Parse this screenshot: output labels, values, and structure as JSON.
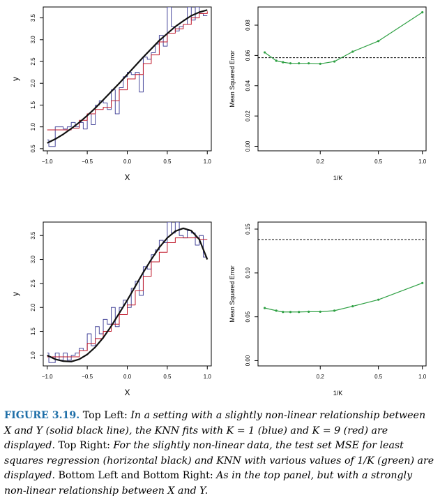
{
  "figure": {
    "label": "FIGURE 3.19.",
    "caption_parts": [
      {
        "text": " Top Left: ",
        "style": "up"
      },
      {
        "text": "In a setting with a slightly non-linear relationship between X and Y (solid black line), the KNN fits with K = 1 (blue) and K = 9 (red) are displayed.",
        "style": "it"
      },
      {
        "text": " Top Right: ",
        "style": "up"
      },
      {
        "text": "For the slightly non-linear data, the test set MSE for least squares regression (horizontal black) and KNN with various values of 1/K (green) are displayed.",
        "style": "it"
      },
      {
        "text": " Bottom Left and Bottom Right: ",
        "style": "up"
      },
      {
        "text": "As in the top panel, but with a strongly non-linear relationship between X and Y.",
        "style": "it"
      }
    ]
  },
  "colors": {
    "knn1": "#4a4a9c",
    "knn9": "#c0182a",
    "truth": "#111111",
    "mse": "#2ea043",
    "ls": "#000000",
    "caption_label": "#1f6fa8"
  },
  "chart_data": [
    {
      "id": "top-left",
      "type": "line",
      "xlabel": "X",
      "ylabel": "y",
      "xlim": [
        -1.05,
        1.05
      ],
      "ylim": [
        0.45,
        3.75
      ],
      "xticks": [
        -1.0,
        -0.5,
        0.0,
        0.5,
        1.0
      ],
      "xtick_labels": [
        "−1.0",
        "−0.5",
        "0.0",
        "0.5",
        "1.0"
      ],
      "yticks": [
        0.5,
        1.0,
        1.5,
        2.0,
        2.5,
        3.0,
        3.5
      ],
      "ytick_labels": [
        "0.5",
        "1.0",
        "1.5",
        "2.0",
        "2.5",
        "3.0",
        "3.5"
      ],
      "series": [
        {
          "key": "knn1",
          "step": true,
          "x": [
            -1.0,
            -0.98,
            -0.95,
            -0.9,
            -0.85,
            -0.8,
            -0.75,
            -0.7,
            -0.65,
            -0.6,
            -0.55,
            -0.5,
            -0.45,
            -0.4,
            -0.35,
            -0.3,
            -0.25,
            -0.2,
            -0.15,
            -0.1,
            -0.05,
            0.0,
            0.05,
            0.1,
            0.15,
            0.2,
            0.25,
            0.3,
            0.35,
            0.4,
            0.45,
            0.5,
            0.55,
            0.6,
            0.65,
            0.7,
            0.75,
            0.8,
            0.85,
            0.9,
            0.95,
            1.0
          ],
          "y": [
            0.7,
            0.55,
            0.55,
            1.0,
            1.0,
            0.95,
            1.0,
            1.1,
            1.0,
            1.1,
            0.95,
            1.3,
            1.05,
            1.5,
            1.6,
            1.55,
            1.4,
            1.85,
            1.3,
            1.9,
            2.15,
            2.25,
            2.2,
            2.25,
            1.8,
            2.6,
            2.55,
            2.7,
            2.9,
            3.1,
            2.85,
            3.75,
            3.3,
            3.2,
            3.3,
            3.35,
            3.75,
            3.45,
            3.75,
            3.6,
            3.55,
            3.55
          ]
        },
        {
          "key": "knn9",
          "step": true,
          "x": [
            -1.0,
            -0.9,
            -0.8,
            -0.7,
            -0.6,
            -0.5,
            -0.4,
            -0.3,
            -0.2,
            -0.1,
            0.0,
            0.1,
            0.2,
            0.3,
            0.4,
            0.5,
            0.6,
            0.7,
            0.8,
            0.9,
            1.0
          ],
          "y": [
            0.93,
            0.93,
            0.93,
            0.97,
            1.15,
            1.3,
            1.4,
            1.45,
            1.6,
            1.85,
            2.1,
            2.2,
            2.45,
            2.65,
            2.95,
            3.15,
            3.25,
            3.35,
            3.5,
            3.6,
            3.65
          ]
        },
        {
          "key": "truth",
          "step": false,
          "x": [
            -1.0,
            -0.9,
            -0.8,
            -0.7,
            -0.6,
            -0.5,
            -0.4,
            -0.3,
            -0.2,
            -0.1,
            0.0,
            0.1,
            0.2,
            0.3,
            0.4,
            0.5,
            0.6,
            0.7,
            0.8,
            0.9,
            1.0
          ],
          "y": [
            0.63,
            0.72,
            0.83,
            0.96,
            1.1,
            1.26,
            1.43,
            1.62,
            1.81,
            2.0,
            2.2,
            2.4,
            2.6,
            2.79,
            2.98,
            3.14,
            3.3,
            3.43,
            3.55,
            3.63,
            3.68
          ]
        }
      ]
    },
    {
      "id": "top-right",
      "type": "line",
      "xlabel": "1/K",
      "ylabel": "Mean Squared Error",
      "xscale": "log",
      "xlim": [
        0.075,
        1.06
      ],
      "ylim": [
        -0.003,
        0.092
      ],
      "xticks": [
        0.2,
        0.5,
        1.0
      ],
      "xtick_labels": [
        "0.2",
        "0.5",
        "1.0"
      ],
      "yticks": [
        0.0,
        0.02,
        0.04,
        0.06,
        0.08
      ],
      "ytick_labels": [
        "0.00",
        "0.02",
        "0.04",
        "0.06",
        "0.08"
      ],
      "least_squares_mse": 0.0585,
      "series": [
        {
          "key": "mse",
          "x": [
            0.0833,
            0.1,
            0.1111,
            0.125,
            0.1429,
            0.1667,
            0.2,
            0.25,
            0.3333,
            0.5,
            1.0
          ],
          "y": [
            0.062,
            0.0565,
            0.0555,
            0.0548,
            0.0548,
            0.0548,
            0.0545,
            0.056,
            0.0625,
            0.0695,
            0.0885
          ]
        }
      ]
    },
    {
      "id": "bottom-left",
      "type": "line",
      "xlabel": "X",
      "ylabel": "y",
      "xlim": [
        -1.05,
        1.05
      ],
      "ylim": [
        0.78,
        3.78
      ],
      "xticks": [
        -1.0,
        -0.5,
        0.0,
        0.5,
        1.0
      ],
      "xtick_labels": [
        "−1.0",
        "−0.5",
        "0.0",
        "0.5",
        "1.0"
      ],
      "yticks": [
        1.0,
        1.5,
        2.0,
        2.5,
        3.0,
        3.5
      ],
      "ytick_labels": [
        "1.0",
        "1.5",
        "2.0",
        "2.5",
        "3.0",
        "3.5"
      ],
      "series": [
        {
          "key": "knn1",
          "step": true,
          "x": [
            -1.0,
            -0.98,
            -0.9,
            -0.85,
            -0.8,
            -0.75,
            -0.7,
            -0.65,
            -0.6,
            -0.55,
            -0.5,
            -0.45,
            -0.4,
            -0.35,
            -0.3,
            -0.25,
            -0.2,
            -0.15,
            -0.1,
            -0.05,
            0.0,
            0.05,
            0.1,
            0.15,
            0.2,
            0.25,
            0.3,
            0.35,
            0.4,
            0.45,
            0.5,
            0.55,
            0.6,
            0.65,
            0.7,
            0.75,
            0.8,
            0.85,
            0.9,
            0.95,
            1.0
          ],
          "y": [
            1.05,
            0.85,
            1.05,
            0.9,
            1.05,
            0.9,
            1.0,
            1.05,
            1.15,
            1.1,
            1.45,
            1.2,
            1.6,
            1.45,
            1.75,
            1.65,
            2.0,
            1.6,
            2.0,
            2.15,
            2.0,
            2.4,
            2.55,
            2.25,
            2.85,
            2.8,
            3.1,
            3.2,
            3.4,
            3.35,
            3.78,
            3.55,
            3.78,
            3.5,
            3.45,
            3.6,
            3.55,
            3.3,
            3.5,
            3.05,
            3.05
          ]
        },
        {
          "key": "knn9",
          "step": true,
          "x": [
            -1.0,
            -0.9,
            -0.8,
            -0.7,
            -0.6,
            -0.5,
            -0.4,
            -0.3,
            -0.2,
            -0.1,
            0.0,
            0.1,
            0.2,
            0.3,
            0.4,
            0.5,
            0.6,
            0.7,
            0.8,
            0.9,
            1.0
          ],
          "y": [
            0.97,
            0.97,
            0.97,
            0.97,
            1.1,
            1.25,
            1.35,
            1.5,
            1.65,
            1.85,
            2.05,
            2.35,
            2.65,
            2.95,
            3.15,
            3.35,
            3.45,
            3.45,
            3.45,
            3.42,
            3.42
          ]
        },
        {
          "key": "truth",
          "step": false,
          "x": [
            -1.0,
            -0.9,
            -0.8,
            -0.7,
            -0.6,
            -0.5,
            -0.4,
            -0.3,
            -0.2,
            -0.1,
            0.0,
            0.1,
            0.2,
            0.3,
            0.4,
            0.5,
            0.6,
            0.7,
            0.8,
            0.9,
            1.0
          ],
          "y": [
            1.0,
            0.92,
            0.88,
            0.87,
            0.92,
            1.02,
            1.17,
            1.37,
            1.61,
            1.88,
            2.15,
            2.44,
            2.73,
            3.0,
            3.25,
            3.45,
            3.59,
            3.65,
            3.6,
            3.42,
            3.0
          ]
        }
      ]
    },
    {
      "id": "bottom-right",
      "type": "line",
      "xlabel": "1/K",
      "ylabel": "Mean Squared Error",
      "xscale": "log",
      "xlim": [
        0.075,
        1.06
      ],
      "ylim": [
        -0.006,
        0.158
      ],
      "xticks": [
        0.2,
        0.5,
        1.0
      ],
      "xtick_labels": [
        "0.2",
        "0.5",
        "1.0"
      ],
      "yticks": [
        0.0,
        0.05,
        0.1,
        0.15
      ],
      "ytick_labels": [
        "0.00",
        "0.05",
        "0.10",
        "0.15"
      ],
      "least_squares_mse": 0.138,
      "series": [
        {
          "key": "mse",
          "x": [
            0.0833,
            0.1,
            0.1111,
            0.125,
            0.1429,
            0.1667,
            0.2,
            0.25,
            0.3333,
            0.5,
            1.0
          ],
          "y": [
            0.06,
            0.057,
            0.0555,
            0.0555,
            0.0555,
            0.0558,
            0.0558,
            0.057,
            0.062,
            0.0695,
            0.0885
          ]
        }
      ]
    }
  ]
}
